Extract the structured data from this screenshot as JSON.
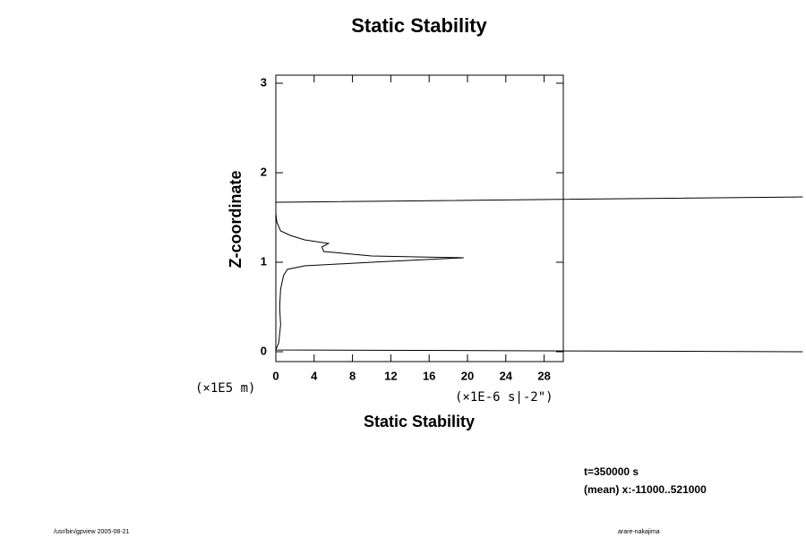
{
  "chart_data": {
    "type": "line",
    "title": "Static Stability",
    "xlabel": "Static Stability",
    "ylabel": "Z-coordinate",
    "xunit": "(×1E-6 s|-2\")",
    "yunit": "(×1E5 m)",
    "annotations": [
      "t=350000 s",
      "(mean) x:-11000..521000"
    ],
    "footer_left": "/usr/bin/gpview 2005-08-21",
    "footer_right": "arare-nakajima",
    "xlim": [
      0,
      30
    ],
    "ylim": [
      -0.11,
      3.09
    ],
    "xticks": [
      0,
      4,
      8,
      12,
      16,
      20,
      24,
      28
    ],
    "yticks": [
      0,
      1,
      2,
      3
    ],
    "x": [
      55,
      0,
      0.3,
      0.5,
      0.4,
      0.5,
      0.8,
      1.2,
      3,
      10,
      19.6,
      10,
      5,
      4.8,
      5.5,
      3,
      1.5,
      0.5,
      0.1,
      0,
      0,
      55
    ],
    "series": [
      {
        "color": "#000000",
        "values": [
          0.0,
          0.02,
          0.1,
          0.3,
          0.5,
          0.7,
          0.85,
          0.92,
          0.96,
          1.0,
          1.05,
          1.07,
          1.12,
          1.17,
          1.21,
          1.25,
          1.3,
          1.35,
          1.45,
          1.55,
          1.67,
          1.73
        ]
      }
    ]
  }
}
